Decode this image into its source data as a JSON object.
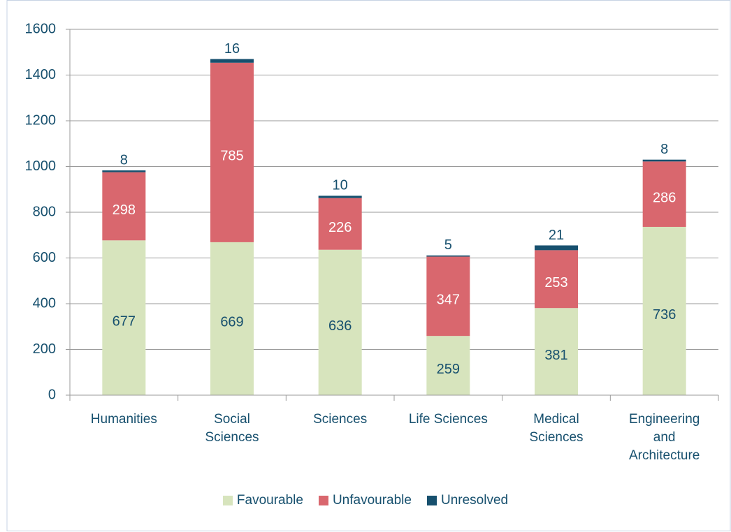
{
  "chart_data": {
    "type": "stacked_bar",
    "categories": [
      "Humanities",
      "Social Sciences",
      "Sciences",
      "Life Sciences",
      "Medical Sciences",
      "Engineering and Architecture"
    ],
    "series": [
      {
        "name": "Favourable",
        "color": "#d7e4bd",
        "values": [
          677,
          669,
          636,
          259,
          381,
          736
        ]
      },
      {
        "name": "Unfavourable",
        "color": "#d9676e",
        "values": [
          298,
          785,
          226,
          347,
          253,
          286
        ]
      },
      {
        "name": "Unresolved",
        "color": "#17506e",
        "values": [
          8,
          16,
          10,
          5,
          21,
          8
        ]
      }
    ],
    "ylim": [
      0,
      1600
    ],
    "yticks": [
      0,
      200,
      400,
      600,
      800,
      1000,
      1200,
      1400,
      1600
    ],
    "grid": true,
    "legend": "bottom"
  }
}
